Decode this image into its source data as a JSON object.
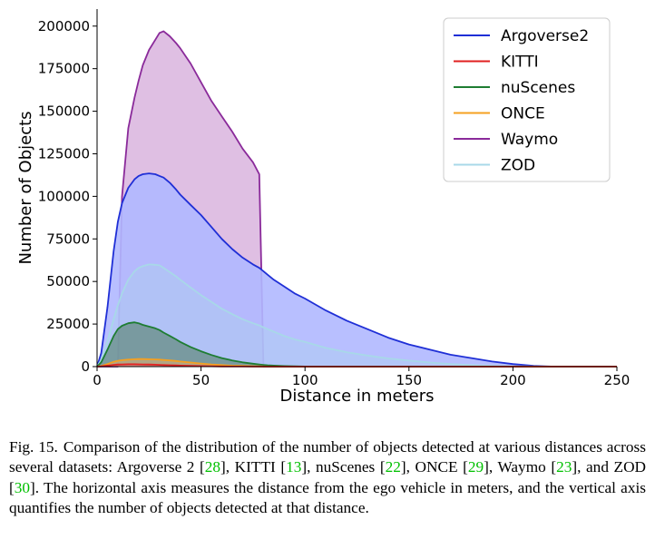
{
  "chart_data": {
    "type": "area",
    "xlabel": "Distance in meters",
    "ylabel": "Number of Objects",
    "xlim": [
      0,
      250
    ],
    "ylim": [
      0,
      210000
    ],
    "xticks": [
      0,
      50,
      100,
      150,
      200,
      250
    ],
    "yticks": [
      0,
      25000,
      50000,
      75000,
      100000,
      125000,
      150000,
      175000,
      200000
    ],
    "x": [
      0,
      2,
      5,
      8,
      10,
      12,
      15,
      18,
      20,
      22,
      25,
      28,
      30,
      32,
      35,
      38,
      40,
      45,
      50,
      55,
      60,
      65,
      70,
      75,
      78,
      80,
      82,
      85,
      90,
      95,
      100,
      110,
      120,
      130,
      140,
      150,
      160,
      170,
      180,
      190,
      200,
      210,
      215,
      220,
      225,
      230,
      240,
      250
    ],
    "legend_position": "upper-right",
    "series": [
      {
        "name": "Argoverse2",
        "color": "#1f2fd6",
        "fill": "#b0b8ff",
        "fill_opacity": 0.9,
        "values": [
          0,
          8000,
          35000,
          68000,
          85000,
          96000,
          105000,
          110000,
          112000,
          113000,
          113500,
          113000,
          112000,
          111000,
          108000,
          104000,
          101000,
          95000,
          89000,
          82000,
          75000,
          69000,
          64000,
          60000,
          58000,
          56000,
          54000,
          51000,
          47000,
          43000,
          40000,
          33000,
          27000,
          22000,
          17000,
          13000,
          10000,
          7000,
          5000,
          3000,
          1500,
          500,
          200,
          0,
          0,
          0,
          0,
          0
        ]
      },
      {
        "name": "KITTI",
        "color": "#e02020",
        "fill": "#f08080",
        "fill_opacity": 0.6,
        "values": [
          0,
          150,
          600,
          1000,
          1200,
          1300,
          1400,
          1400,
          1350,
          1300,
          1200,
          1100,
          1000,
          900,
          800,
          700,
          600,
          450,
          300,
          200,
          120,
          60,
          30,
          10,
          0,
          0,
          0,
          0,
          0,
          0,
          0,
          0,
          0,
          0,
          0,
          0,
          0,
          0,
          0,
          0,
          0,
          0,
          0,
          0,
          0,
          0,
          0,
          0
        ]
      },
      {
        "name": "nuScenes",
        "color": "#1e7d32",
        "fill": "#4a7a5a",
        "fill_opacity": 0.55,
        "values": [
          0,
          2500,
          10000,
          18000,
          22000,
          24000,
          25500,
          26000,
          25500,
          24500,
          23500,
          22500,
          21500,
          20000,
          18000,
          16000,
          14500,
          11500,
          9000,
          6800,
          5000,
          3600,
          2500,
          1700,
          1300,
          1000,
          800,
          600,
          300,
          150,
          60,
          10,
          0,
          0,
          0,
          0,
          0,
          0,
          0,
          0,
          0,
          0,
          0,
          0,
          0,
          0,
          0,
          0
        ]
      },
      {
        "name": "ONCE",
        "color": "#f5a020",
        "fill": "#e0b070",
        "fill_opacity": 0.55,
        "values": [
          0,
          400,
          1500,
          2800,
          3400,
          3800,
          4100,
          4300,
          4400,
          4400,
          4300,
          4200,
          4100,
          3900,
          3600,
          3300,
          3000,
          2400,
          1800,
          1300,
          900,
          600,
          400,
          250,
          150,
          100,
          60,
          20,
          0,
          0,
          0,
          0,
          0,
          0,
          0,
          0,
          0,
          0,
          0,
          0,
          0,
          0,
          0,
          0,
          0,
          0,
          0,
          0
        ]
      },
      {
        "name": "Waymo",
        "color": "#8a2a9a",
        "fill": "#c080c8",
        "fill_opacity": 0.5,
        "values": [
          0,
          0,
          0,
          0,
          0,
          100000,
          140000,
          158000,
          168000,
          177000,
          186000,
          192000,
          196000,
          197000,
          194000,
          190000,
          187000,
          178000,
          167000,
          156000,
          147000,
          138000,
          128000,
          120000,
          113000,
          0,
          0,
          0,
          0,
          0,
          0,
          0,
          0,
          0,
          0,
          0,
          0,
          0,
          0,
          0,
          0,
          0,
          0,
          0,
          0,
          0,
          0,
          0
        ]
      },
      {
        "name": "ZOD",
        "color": "#a8d8e8",
        "fill": "#a8d8e8",
        "fill_opacity": 0.3,
        "values": [
          0,
          4000,
          15000,
          28000,
          36000,
          43000,
          51000,
          56000,
          58000,
          59000,
          60000,
          59800,
          59500,
          58000,
          55500,
          53000,
          51000,
          46500,
          42000,
          38000,
          34000,
          30800,
          27800,
          25500,
          24200,
          23000,
          22000,
          20500,
          18000,
          16000,
          14500,
          11000,
          8500,
          6500,
          4800,
          3500,
          2400,
          1500,
          900,
          500,
          200,
          80,
          30,
          0,
          0,
          0,
          0,
          0
        ]
      }
    ]
  },
  "caption": {
    "label": "Fig. 15.",
    "text_1": "Comparison of the distribution of the number of objects detected at various distances across several datasets: Argoverse 2 [",
    "ref_1": "28",
    "text_2": "], KITTI [",
    "ref_2": "13",
    "text_3": "], nuScenes [",
    "ref_3": "22",
    "text_4": "], ONCE [",
    "ref_4": "29",
    "text_5": "], Waymo [",
    "ref_5": "23",
    "text_6": "], and ZOD [",
    "ref_6": "30",
    "text_7": "]. The horizontal axis measures the distance from the ego vehicle in meters, and the vertical axis quantifies the number of objects detected at that distance."
  }
}
